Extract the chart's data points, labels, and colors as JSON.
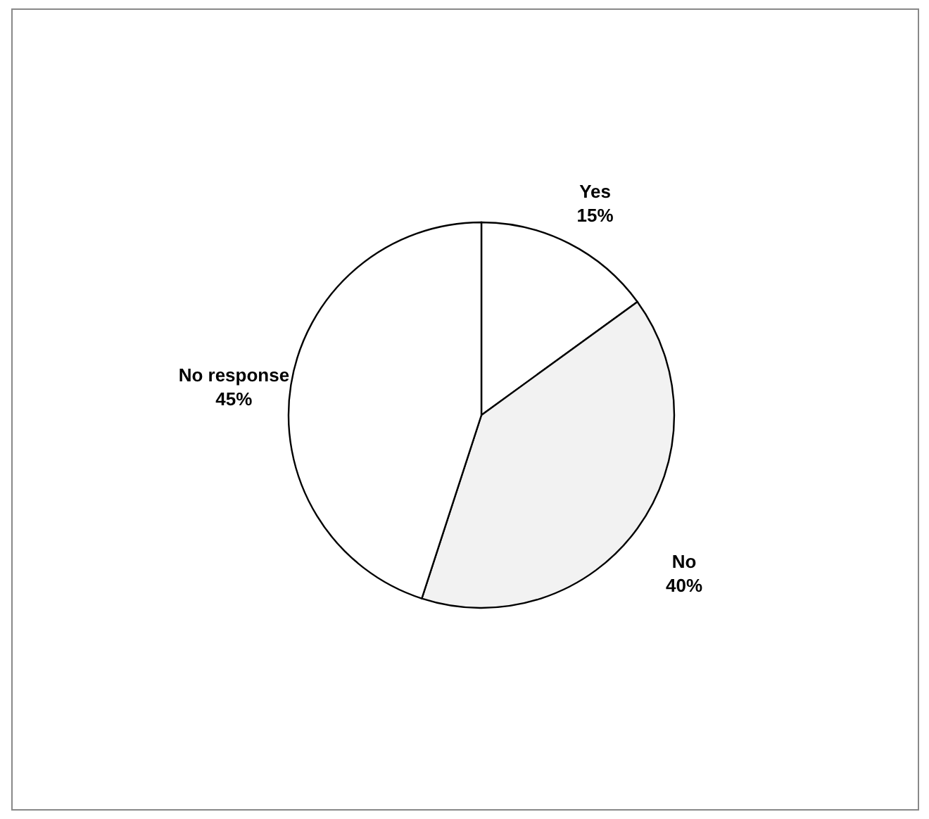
{
  "chart_data": {
    "type": "pie",
    "categories": [
      "Yes",
      "No",
      "No response"
    ],
    "values": [
      15,
      40,
      45
    ],
    "value_labels": [
      "15%",
      "40%",
      "45%"
    ],
    "colors": [
      "#ffffff",
      "#f2f2f2",
      "#ffffff"
    ]
  }
}
